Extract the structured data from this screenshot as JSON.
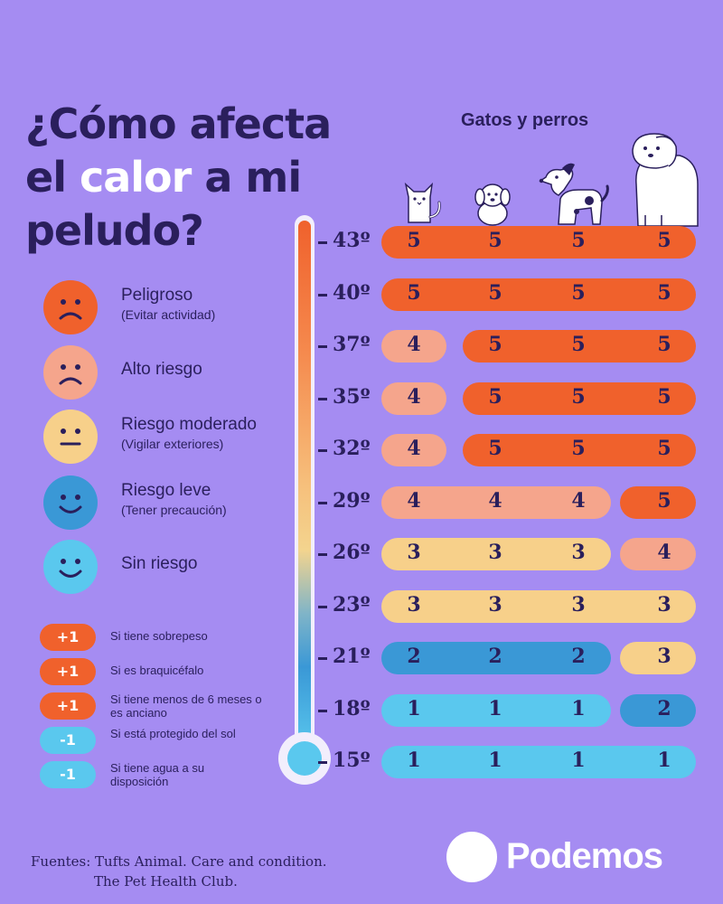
{
  "title": {
    "line1": "¿Cómo afecta",
    "line2_pre": "el ",
    "line2_highlight": "calor",
    "line2_post": " a mi",
    "line3": "peludo?"
  },
  "animals_label": "Gatos y perros",
  "animals": [
    "cat-icon",
    "small-dog-icon",
    "medium-dog-icon",
    "large-dog-icon"
  ],
  "legend": [
    {
      "label": "Peligroso",
      "sub": "(Evitar actividad)",
      "color": "#f0612c",
      "mood": "sad"
    },
    {
      "label": "Alto riesgo",
      "sub": "",
      "color": "#f5a58c",
      "mood": "sad"
    },
    {
      "label": "Riesgo moderado",
      "sub": "(Vigilar exteriores)",
      "color": "#f7d08a",
      "mood": "neutral"
    },
    {
      "label": "Riesgo leve",
      "sub": "(Tener precaución)",
      "color": "#3a98d6",
      "mood": "happy"
    },
    {
      "label": "Sin riesgo",
      "sub": "",
      "color": "#5ac8ee",
      "mood": "happy"
    }
  ],
  "modifiers": [
    {
      "badge": "+1",
      "text": "Si tiene sobrepeso",
      "color": "#f0612c"
    },
    {
      "badge": "+1",
      "text": "Si es braquicéfalo",
      "color": "#f0612c"
    },
    {
      "badge": "+1",
      "text": "Si tiene menos de 6 meses o es anciano",
      "color": "#f0612c"
    },
    {
      "badge": "-1",
      "text": "Si está protegido del sol",
      "color": "#5ac8ee"
    },
    {
      "badge": "-1",
      "text": "Si tiene agua a su disposición",
      "color": "#5ac8ee"
    }
  ],
  "risk_colors": {
    "1": "#5ac8ee",
    "2": "#3a98d6",
    "3": "#f7d08a",
    "4": "#f5a58c",
    "5": "#f0612c"
  },
  "table": [
    {
      "temp": "43º",
      "values": [
        5,
        5,
        5,
        5
      ]
    },
    {
      "temp": "40º",
      "values": [
        5,
        5,
        5,
        5
      ]
    },
    {
      "temp": "37º",
      "values": [
        4,
        5,
        5,
        5
      ]
    },
    {
      "temp": "35º",
      "values": [
        4,
        5,
        5,
        5
      ]
    },
    {
      "temp": "32º",
      "values": [
        4,
        5,
        5,
        5
      ]
    },
    {
      "temp": "29º",
      "values": [
        4,
        4,
        4,
        5
      ]
    },
    {
      "temp": "26º",
      "values": [
        3,
        3,
        3,
        4
      ]
    },
    {
      "temp": "23º",
      "values": [
        3,
        3,
        3,
        3
      ]
    },
    {
      "temp": "21º",
      "values": [
        2,
        2,
        2,
        3
      ]
    },
    {
      "temp": "18º",
      "values": [
        1,
        1,
        1,
        2
      ]
    },
    {
      "temp": "15º",
      "values": [
        1,
        1,
        1,
        1
      ]
    }
  ],
  "sources": {
    "line1": "Fuentes: Tufts Animal. Care and condition.",
    "line2": "The Pet Health Club."
  },
  "brand": "Podemos"
}
